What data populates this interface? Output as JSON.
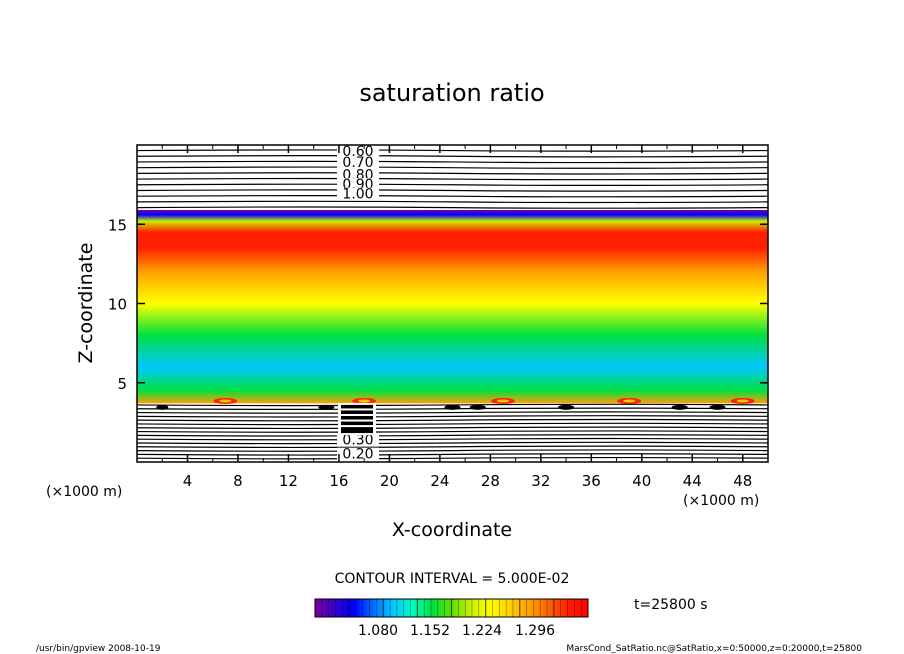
{
  "chart_data": {
    "type": "contour",
    "title": "saturation ratio",
    "xlabel": "X-coordinate",
    "ylabel": "Z-coordinate",
    "x_unit": "(×1000 m)",
    "y_unit": "(×1000 m)",
    "xlim": [
      0,
      50
    ],
    "ylim": [
      0,
      20
    ],
    "xticks": [
      4,
      8,
      12,
      16,
      20,
      24,
      28,
      32,
      36,
      40,
      44,
      48
    ],
    "yticks": [
      5,
      10,
      15
    ],
    "contour_interval_text": "CONTOUR INTERVAL = 5.000E-02",
    "time_text": "t=25800 s",
    "upper_contour_labels": [
      "0.60",
      "0.70",
      "0.80",
      "0.90",
      "1.00"
    ],
    "upper_contour_z": [
      19.5,
      18.8,
      18.0,
      17.4,
      16.8
    ],
    "lower_contour_labels": [
      "0.20",
      "0.30"
    ],
    "lower_contour_z": [
      0.4,
      1.3
    ],
    "colorbar_labels": [
      "1.080",
      "1.152",
      "1.224",
      "1.296"
    ],
    "colorbar_colors": [
      "#7a00a0",
      "#3a00c8",
      "#0000ff",
      "#0070ff",
      "#00c8ff",
      "#00ffc0",
      "#00e040",
      "#60e000",
      "#c8f000",
      "#ffff00",
      "#ffd000",
      "#ffa000",
      "#ff6000",
      "#ff2000",
      "#ff0000"
    ],
    "profile": [
      {
        "z": 3.7,
        "value": 1.26
      },
      {
        "z": 4.5,
        "value": 1.16
      },
      {
        "z": 6.0,
        "value": 1.13
      },
      {
        "z": 8.0,
        "value": 1.17
      },
      {
        "z": 10.0,
        "value": 1.22
      },
      {
        "z": 12.0,
        "value": 1.27
      },
      {
        "z": 13.5,
        "value": 1.3
      },
      {
        "z": 14.5,
        "value": 1.3
      },
      {
        "z": 15.2,
        "value": 1.2
      },
      {
        "z": 15.6,
        "value": 1.1
      },
      {
        "z": 15.9,
        "value": 1.06
      }
    ],
    "hotspots_x": [
      7,
      18,
      29,
      39,
      48
    ],
    "footer_left": "/usr/bin/gpview   2008-10-19",
    "footer_right": "MarsCond_SatRatio.nc@SatRatio,x=0:50000,z=0:20000,t=25800"
  }
}
